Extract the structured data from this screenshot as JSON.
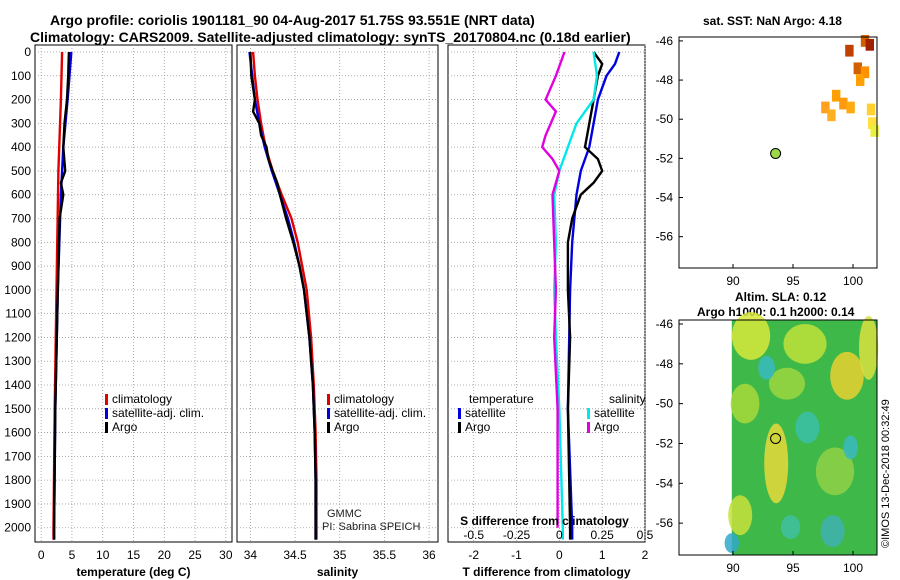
{
  "header": {
    "line1": "Argo profile: coriolis 1901181_90 04-Aug-2017 51.75S 93.551E (NRT data)",
    "line2": "Climatology: CARS2009. Satellite-adjusted climatology: synTS_20170804.nc (0.18d earlier)"
  },
  "credits": {
    "org": "GMMC",
    "pi": "PI: Sabrina SPEICH",
    "imos": "©IMOS 13-Dec-2018 00:32:49"
  },
  "sst_panel": {
    "title": "sat. SST: NaN Argo: 4.18"
  },
  "sla_panel": {
    "title1": "Altim. SLA: 0.12",
    "title2": "Argo h1000: 0.1 h2000: 0.14"
  },
  "colors": {
    "climatology": "#e00000",
    "satellite": "#0000e0",
    "argo": "#000000",
    "sat_sal": "#00e8e8",
    "argo_sal": "#e000e0"
  },
  "chart_data": [
    {
      "type": "line",
      "id": "temperature",
      "xlabel": "temperature (deg C)",
      "ylabel": "",
      "xlim": [
        -1,
        31
      ],
      "ylim": [
        2060,
        0
      ],
      "xticks": [
        "0",
        "5",
        "10",
        "15",
        "20",
        "25",
        "30"
      ],
      "yticks": [
        "0",
        "100",
        "200",
        "300",
        "400",
        "500",
        "600",
        "700",
        "800",
        "900",
        "1000",
        "1100",
        "1200",
        "1300",
        "1400",
        "1500",
        "1600",
        "1700",
        "1800",
        "1900",
        "2000"
      ],
      "legend": [
        "climatology",
        "satellite-adj. clim.",
        "Argo"
      ],
      "series": [
        {
          "name": "climatology",
          "depth": [
            0,
            200,
            500,
            1000,
            1500,
            2000,
            2050
          ],
          "values": [
            3.4,
            3.2,
            2.8,
            2.5,
            2.2,
            2.0,
            2.0
          ]
        },
        {
          "name": "satellite-adj. clim.",
          "depth": [
            0,
            100,
            200,
            400,
            600,
            1000,
            1500,
            2000,
            2050
          ],
          "values": [
            4.9,
            4.6,
            4.3,
            3.6,
            3.2,
            2.7,
            2.3,
            2.1,
            2.1
          ]
        },
        {
          "name": "Argo",
          "depth": [
            0,
            100,
            200,
            300,
            400,
            500,
            550,
            600,
            700,
            1000,
            1500,
            2000,
            2050
          ],
          "values": [
            4.5,
            4.4,
            4.2,
            3.8,
            3.6,
            3.9,
            3.2,
            3.6,
            3.0,
            2.7,
            2.3,
            2.1,
            2.1
          ]
        }
      ]
    },
    {
      "type": "line",
      "id": "salinity",
      "xlabel": "salinity",
      "xlim": [
        33.85,
        36.1
      ],
      "ylim": [
        2060,
        0
      ],
      "xticks": [
        "34",
        "34.5",
        "35",
        "35.5",
        "36"
      ],
      "legend": [
        "climatology",
        "satellite-adj. clim.",
        "Argo"
      ],
      "series": [
        {
          "name": "climatology",
          "depth": [
            0,
            100,
            200,
            300,
            400,
            500,
            600,
            700,
            800,
            900,
            1000,
            1200,
            1400,
            1600,
            1800,
            2000,
            2050
          ],
          "values": [
            34.03,
            34.05,
            34.08,
            34.12,
            34.17,
            34.25,
            34.35,
            34.46,
            34.53,
            34.58,
            34.63,
            34.68,
            34.71,
            34.73,
            34.74,
            34.74,
            34.74
          ]
        },
        {
          "name": "satellite-adj. clim.",
          "depth": [
            0,
            100,
            200,
            300,
            400,
            500,
            600,
            700,
            800,
            900,
            1000,
            1200,
            1400,
            1600,
            1800,
            2000,
            2050
          ],
          "values": [
            33.99,
            34.02,
            34.05,
            34.1,
            34.16,
            34.24,
            34.33,
            34.42,
            34.49,
            34.55,
            34.6,
            34.66,
            34.7,
            34.72,
            34.73,
            34.73,
            34.73
          ]
        },
        {
          "name": "Argo",
          "depth": [
            0,
            100,
            200,
            250,
            300,
            350,
            400,
            450,
            500,
            550,
            600,
            700,
            800,
            900,
            1000,
            1200,
            1400,
            1600,
            1800,
            2000,
            2050
          ],
          "values": [
            34.0,
            34.01,
            34.05,
            34.03,
            34.1,
            34.12,
            34.18,
            34.2,
            34.25,
            34.3,
            34.33,
            34.4,
            34.48,
            34.55,
            34.6,
            34.66,
            34.7,
            34.72,
            34.73,
            34.73,
            34.73
          ]
        }
      ]
    },
    {
      "type": "line",
      "id": "difference",
      "xlabel": "T difference from climatology",
      "xlabel2": "S difference from climatology",
      "xlim": [
        -2.6,
        2.0
      ],
      "ylim": [
        2060,
        0
      ],
      "xticks": [
        "-2",
        "-1",
        "0",
        "1",
        "2"
      ],
      "xticks_salinity": [
        "-0.5",
        "-0.25",
        "0",
        "0.25",
        "0.5"
      ],
      "legend_titles": [
        "temperature",
        "salinity"
      ],
      "legend": [
        "satellite",
        "Argo"
      ],
      "series": [
        {
          "name": "T satellite",
          "depth": [
            0,
            50,
            100,
            200,
            300,
            400,
            500,
            600,
            800,
            1000,
            1500,
            2000,
            2050
          ],
          "values": [
            1.4,
            1.3,
            1.1,
            0.9,
            0.8,
            0.7,
            0.5,
            0.4,
            0.3,
            0.25,
            0.2,
            0.3,
            0.3
          ]
        },
        {
          "name": "T Argo",
          "depth": [
            0,
            50,
            100,
            200,
            300,
            400,
            450,
            500,
            550,
            600,
            700,
            800,
            1000,
            1200,
            1500,
            2000,
            2050
          ],
          "values": [
            0.8,
            1.0,
            0.9,
            0.8,
            0.7,
            0.6,
            0.9,
            1.0,
            0.8,
            0.5,
            0.3,
            0.2,
            0.2,
            0.25,
            0.2,
            0.25,
            0.25
          ]
        },
        {
          "name": "S satellite",
          "depth": [
            0,
            100,
            200,
            300,
            400,
            500,
            600,
            800,
            1000,
            1200,
            1500,
            2000,
            2050
          ],
          "values": [
            0.2,
            0.22,
            0.2,
            0.1,
            0.05,
            0.0,
            -0.03,
            -0.02,
            -0.03,
            -0.02,
            0.0,
            0.02,
            0.02
          ]
        },
        {
          "name": "S Argo",
          "depth": [
            0,
            100,
            200,
            250,
            300,
            350,
            400,
            450,
            500,
            600,
            800,
            1000,
            1200,
            1500,
            1800,
            2000
          ],
          "values": [
            0.03,
            -0.02,
            -0.08,
            -0.02,
            -0.05,
            -0.08,
            -0.1,
            -0.04,
            0.0,
            -0.04,
            -0.03,
            -0.02,
            -0.03,
            -0.01,
            -0.01,
            -0.01
          ]
        }
      ]
    },
    {
      "type": "heatmap",
      "id": "sst_map",
      "xlim": [
        85.5,
        102
      ],
      "ylim": [
        -57.6,
        -45.8
      ],
      "xticks": [
        "90",
        "95",
        "100"
      ],
      "yticks": [
        "-46",
        "-48",
        "-50",
        "-52",
        "-54",
        "-56"
      ],
      "argo_position": {
        "lon": 93.55,
        "lat": -51.75
      }
    },
    {
      "type": "heatmap",
      "id": "sla_map",
      "xlim": [
        85.5,
        102
      ],
      "ylim": [
        -57.6,
        -45.8
      ],
      "xticks": [
        "90",
        "95",
        "100"
      ],
      "yticks": [
        "-46",
        "-48",
        "-50",
        "-52",
        "-54",
        "-56"
      ],
      "argo_position": {
        "lon": 93.55,
        "lat": -51.75
      }
    }
  ]
}
